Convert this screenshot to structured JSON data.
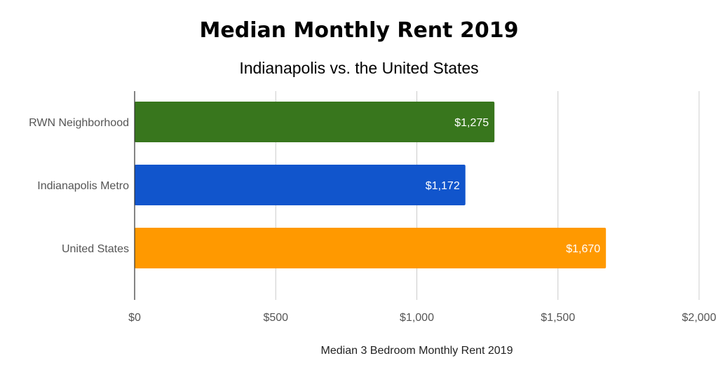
{
  "chart_data": {
    "type": "bar",
    "orientation": "horizontal",
    "title": "Median Monthly Rent 2019",
    "subtitle": "Indianapolis vs. the United States",
    "categories": [
      "RWN Neighborhood",
      "Indianapolis Metro",
      "United States"
    ],
    "values": [
      1275,
      1172,
      1670
    ],
    "value_labels": [
      "$1,275",
      "$1,172",
      "$1,670"
    ],
    "colors": [
      "#38761d",
      "#1155cc",
      "#ff9900"
    ],
    "xlabel": "Median 3 Bedroom Monthly Rent 2019",
    "ylabel": "",
    "xlim": [
      0,
      2000
    ],
    "x_ticks": [
      0,
      500,
      1000,
      1500,
      2000
    ],
    "x_tick_labels": [
      "$0",
      "$500",
      "$1,000",
      "$1,500",
      "$2,000"
    ],
    "grid": "vertical"
  }
}
